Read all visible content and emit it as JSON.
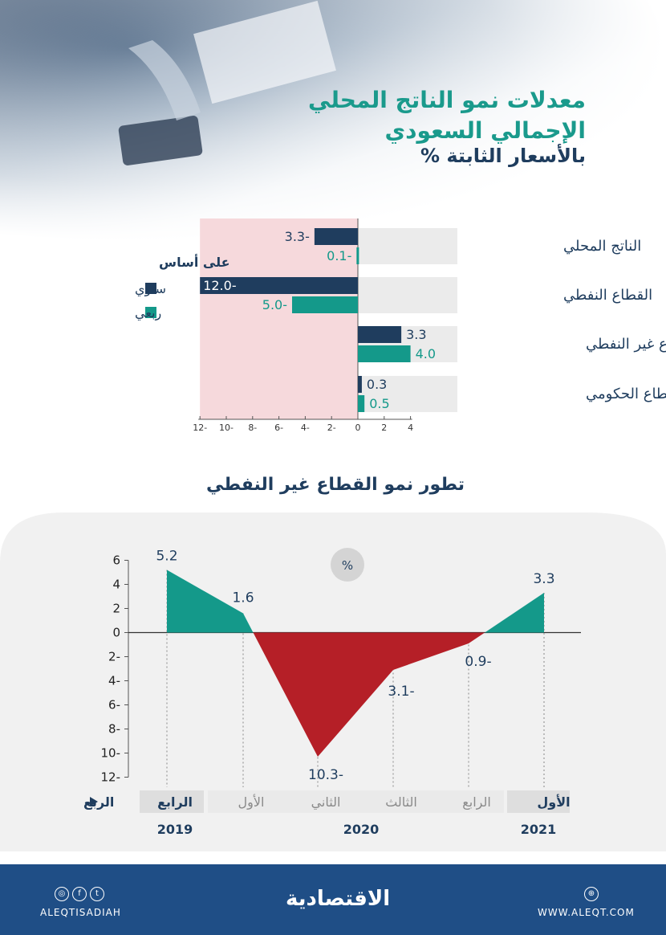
{
  "title_line1": "معدلات نمو الناتج المحلي",
  "title_line2": "الإجمالي السعودي",
  "subtitle": "بالأسعار الثابتة  %",
  "chart_data": [
    {
      "type": "bar",
      "orientation": "horizontal",
      "categories": [
        "الناتج المحلي",
        "القطاع النفطي",
        "القطاع غير النفطي",
        "القطاع الحكومي"
      ],
      "series": [
        {
          "name": "سنوي",
          "color": "#1f3d5e",
          "values": [
            -3.3,
            -12.0,
            3.3,
            0.3
          ],
          "labels": [
            "3.3-",
            "12.0-",
            "3.3",
            "0.3"
          ]
        },
        {
          "name": "ربعي",
          "color": "#14998a",
          "values": [
            -0.1,
            -5.0,
            4.0,
            0.5
          ],
          "labels": [
            "0.1-",
            "5.0-",
            "4.0",
            "0.5"
          ]
        }
      ],
      "xlim": [
        -12,
        4
      ],
      "xticks": [
        {
          "v": -12,
          "label": "12-"
        },
        {
          "v": -10,
          "label": "10-"
        },
        {
          "v": -8,
          "label": "8-"
        },
        {
          "v": -6,
          "label": "6-"
        },
        {
          "v": -4,
          "label": "4-"
        },
        {
          "v": -2,
          "label": "2-"
        },
        {
          "v": 0,
          "label": "0"
        },
        {
          "v": 2,
          "label": "2"
        },
        {
          "v": 4,
          "label": "4"
        }
      ],
      "legend_title": "على أساس",
      "legend_position": "left"
    },
    {
      "type": "area",
      "title": "تطور نمو القطاع غير النفطي",
      "unit": "%",
      "quarters": [
        "الرابع",
        "الأول",
        "الثاني",
        "الثالث",
        "الرابع",
        "الأول"
      ],
      "years": [
        {
          "label": "2019",
          "quarters": [
            0
          ]
        },
        {
          "label": "2020",
          "quarters": [
            1,
            2,
            3,
            4
          ]
        },
        {
          "label": "2021",
          "quarters": [
            5
          ]
        }
      ],
      "values": [
        5.2,
        1.6,
        -10.3,
        -3.1,
        -0.9,
        3.3
      ],
      "value_labels": [
        "5.2",
        "1.6",
        "10.3-",
        "3.1-",
        "0.9-",
        "3.3"
      ],
      "ylim": [
        -12,
        6
      ],
      "yticks": [
        {
          "v": 6,
          "label": "6"
        },
        {
          "v": 4,
          "label": "4"
        },
        {
          "v": 2,
          "label": "2"
        },
        {
          "v": 0,
          "label": "0"
        },
        {
          "v": -2,
          "label": "2-"
        },
        {
          "v": -4,
          "label": "4-"
        },
        {
          "v": -6,
          "label": "6-"
        },
        {
          "v": -8,
          "label": "8-"
        },
        {
          "v": -10,
          "label": "10-"
        },
        {
          "v": -12,
          "label": "12-"
        }
      ],
      "axis_label": "الربع",
      "positive_color": "#14998a",
      "negative_color": "#b51f27"
    }
  ],
  "footer": {
    "brand": "الاقتصادية",
    "handle": "ALEQTISADIAH",
    "website": "WWW.ALEQT.COM",
    "social_icons": [
      "instagram-icon",
      "facebook-icon",
      "twitter-icon"
    ],
    "web_icon": "globe-icon"
  }
}
